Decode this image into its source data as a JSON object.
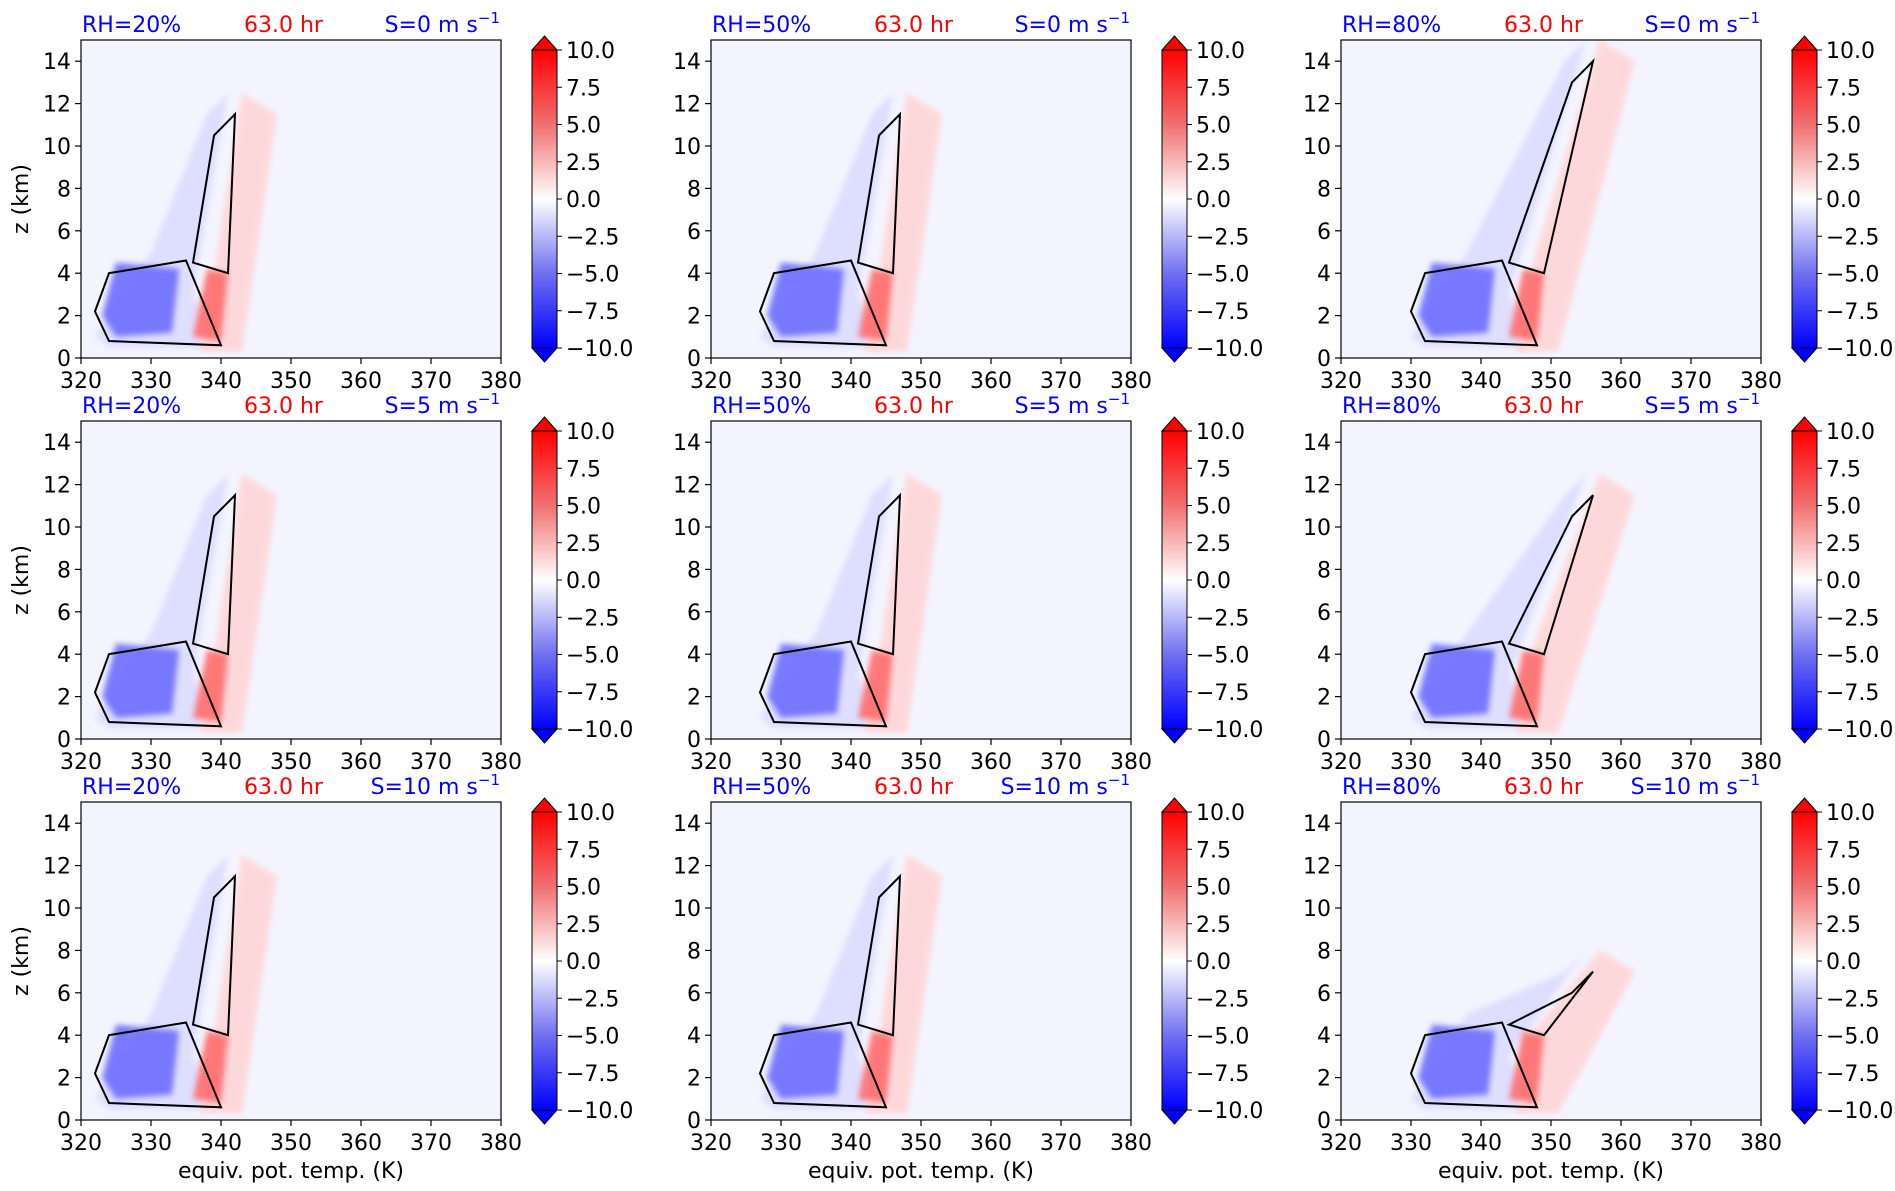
{
  "figure": {
    "xlabel": "equiv. pot. temp. (K)",
    "ylabel": "z (km)",
    "time_label": "63.0 hr",
    "colors": {
      "blue_label": "#0000ff",
      "red_label": "#ff0000",
      "plot_bg": "#f4f4ff",
      "contour": "#000000"
    }
  },
  "colorbar": {
    "ticks": [
      "10.0",
      "7.5",
      "5.0",
      "2.5",
      "0.0",
      "−2.5",
      "−5.0",
      "−7.5",
      "−10.0"
    ],
    "range": [
      -10,
      10
    ],
    "extend": "both"
  },
  "chart_data": [
    {
      "type": "heatmap",
      "rh_label": "RH=20%",
      "shear_label": "S=0 m s",
      "time_label": "63.0 hr",
      "xlim": [
        320,
        380
      ],
      "ylim": [
        0,
        15
      ],
      "xticks": [
        320,
        330,
        340,
        350,
        360,
        370,
        380
      ],
      "yticks": [
        0,
        2,
        4,
        6,
        8,
        10,
        12,
        14
      ],
      "ylabel": "z (km)",
      "xlabel": ""
    },
    {
      "type": "heatmap",
      "rh_label": "RH=50%",
      "shear_label": "S=0 m s",
      "time_label": "63.0 hr",
      "xlim": [
        320,
        380
      ],
      "ylim": [
        0,
        15
      ],
      "xticks": [
        320,
        330,
        340,
        350,
        360,
        370,
        380
      ],
      "yticks": [
        0,
        2,
        4,
        6,
        8,
        10,
        12,
        14
      ],
      "ylabel": "",
      "xlabel": ""
    },
    {
      "type": "heatmap",
      "rh_label": "RH=80%",
      "shear_label": "S=0 m s",
      "time_label": "63.0 hr",
      "xlim": [
        320,
        380
      ],
      "ylim": [
        0,
        15
      ],
      "xticks": [
        320,
        330,
        340,
        350,
        360,
        370,
        380
      ],
      "yticks": [
        0,
        2,
        4,
        6,
        8,
        10,
        12,
        14
      ],
      "ylabel": "",
      "xlabel": ""
    },
    {
      "type": "heatmap",
      "rh_label": "RH=20%",
      "shear_label": "S=5 m s",
      "time_label": "63.0 hr",
      "xlim": [
        320,
        380
      ],
      "ylim": [
        0,
        15
      ],
      "xticks": [
        320,
        330,
        340,
        350,
        360,
        370,
        380
      ],
      "yticks": [
        0,
        2,
        4,
        6,
        8,
        10,
        12,
        14
      ],
      "ylabel": "z (km)",
      "xlabel": ""
    },
    {
      "type": "heatmap",
      "rh_label": "RH=50%",
      "shear_label": "S=5 m s",
      "time_label": "63.0 hr",
      "xlim": [
        320,
        380
      ],
      "ylim": [
        0,
        15
      ],
      "xticks": [
        320,
        330,
        340,
        350,
        360,
        370,
        380
      ],
      "yticks": [
        0,
        2,
        4,
        6,
        8,
        10,
        12,
        14
      ],
      "ylabel": "",
      "xlabel": ""
    },
    {
      "type": "heatmap",
      "rh_label": "RH=80%",
      "shear_label": "S=5 m s",
      "time_label": "63.0 hr",
      "xlim": [
        320,
        380
      ],
      "ylim": [
        0,
        15
      ],
      "xticks": [
        320,
        330,
        340,
        350,
        360,
        370,
        380
      ],
      "yticks": [
        0,
        2,
        4,
        6,
        8,
        10,
        12,
        14
      ],
      "ylabel": "",
      "xlabel": ""
    },
    {
      "type": "heatmap",
      "rh_label": "RH=20%",
      "shear_label": "S=10 m s",
      "time_label": "63.0 hr",
      "xlim": [
        320,
        380
      ],
      "ylim": [
        0,
        15
      ],
      "xticks": [
        320,
        330,
        340,
        350,
        360,
        370,
        380
      ],
      "yticks": [
        0,
        2,
        4,
        6,
        8,
        10,
        12,
        14
      ],
      "ylabel": "z (km)",
      "xlabel": "equiv. pot. temp. (K)"
    },
    {
      "type": "heatmap",
      "rh_label": "RH=50%",
      "shear_label": "S=10 m s",
      "time_label": "63.0 hr",
      "xlim": [
        320,
        380
      ],
      "ylim": [
        0,
        15
      ],
      "xticks": [
        320,
        330,
        340,
        350,
        360,
        370,
        380
      ],
      "yticks": [
        0,
        2,
        4,
        6,
        8,
        10,
        12,
        14
      ],
      "ylabel": "",
      "xlabel": "equiv. pot. temp. (K)"
    },
    {
      "type": "heatmap",
      "rh_label": "RH=80%",
      "shear_label": "S=10 m s",
      "time_label": "63.0 hr",
      "xlim": [
        320,
        380
      ],
      "ylim": [
        0,
        15
      ],
      "xticks": [
        320,
        330,
        340,
        350,
        360,
        370,
        380
      ],
      "yticks": [
        0,
        2,
        4,
        6,
        8,
        10,
        12,
        14
      ],
      "ylabel": "",
      "xlabel": "equiv. pot. temp. (K)"
    }
  ]
}
